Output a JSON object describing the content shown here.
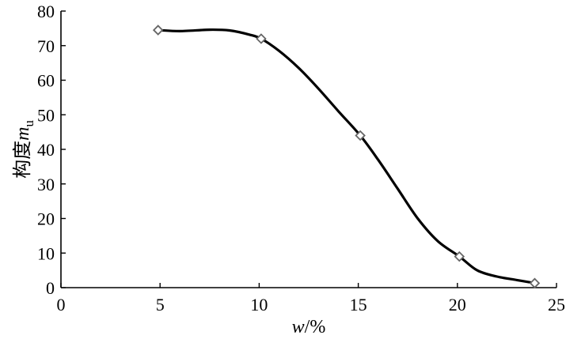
{
  "chart_data": {
    "type": "line",
    "xlabel": {
      "var": "w",
      "unit": "/%"
    },
    "ylabel": {
      "main": "构度",
      "var": "m",
      "sub": "u"
    },
    "xlim": [
      0,
      25
    ],
    "ylim": [
      0,
      80
    ],
    "xticks": [
      0,
      5,
      10,
      15,
      20,
      25
    ],
    "yticks": [
      0,
      10,
      20,
      30,
      40,
      50,
      60,
      70,
      80
    ],
    "series": [
      {
        "marker": "diamond",
        "x": [
          4.9,
          10.1,
          15.1,
          20.1,
          23.9
        ],
        "y": [
          74.5,
          72.0,
          44.0,
          9.0,
          1.3
        ]
      }
    ],
    "curve": {
      "x": [
        4.9,
        6.0,
        7.5,
        8.5,
        9.5,
        10.1,
        11.0,
        12.0,
        13.0,
        14.0,
        15.1,
        16.0,
        17.0,
        18.0,
        19.0,
        20.1,
        21.0,
        22.0,
        23.0,
        23.9
      ],
      "y": [
        74.5,
        74.2,
        74.6,
        74.4,
        73.2,
        72.0,
        68.5,
        63.5,
        57.5,
        51.0,
        44.0,
        37.0,
        28.5,
        20.0,
        13.5,
        9.0,
        5.0,
        3.2,
        2.2,
        1.3
      ]
    },
    "grid": false,
    "colors": {
      "line": "#000000",
      "marker_edge": "#666666",
      "marker_fill": "#ffffff"
    }
  }
}
